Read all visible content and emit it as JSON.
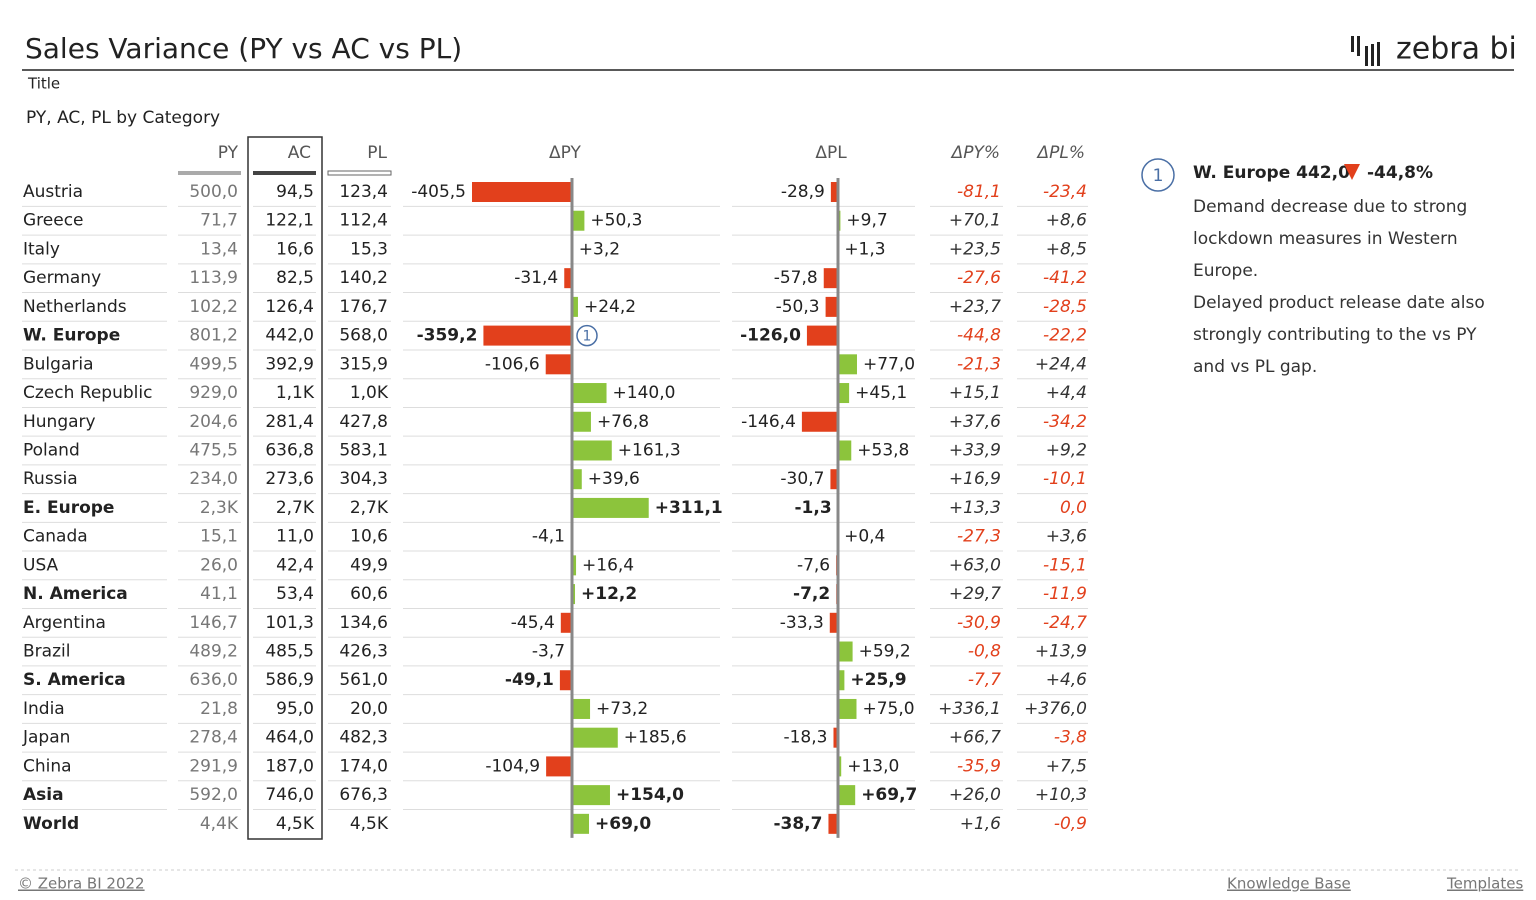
{
  "header": {
    "title": "Sales Variance (PY vs AC vs PL)",
    "logo": "zebra bi"
  },
  "visual": {
    "label": "Title",
    "subtitle": "PY, AC, PL by Category",
    "columns": [
      "PY",
      "AC",
      "PL",
      "ΔPY",
      "ΔPL",
      "ΔPY%",
      "ΔPL%"
    ],
    "rows": [
      {
        "name": "Austria",
        "py": "500,0",
        "ac": "94,5",
        "pl": "123,4",
        "dpy": {
          "value": -405.5,
          "label": "-405,5"
        },
        "dpl": {
          "value": -28.9,
          "label": "-28,9"
        },
        "dpy_pct": "-81,1",
        "dpl_pct": "-23,4",
        "bold": false
      },
      {
        "name": "Greece",
        "py": "71,7",
        "ac": "122,1",
        "pl": "112,4",
        "dpy": {
          "value": 50.3,
          "label": "+50,3"
        },
        "dpl": {
          "value": 9.7,
          "label": "+9,7"
        },
        "dpy_pct": "+70,1",
        "dpl_pct": "+8,6",
        "bold": false
      },
      {
        "name": "Italy",
        "py": "13,4",
        "ac": "16,6",
        "pl": "15,3",
        "dpy": {
          "value": 3.2,
          "label": "+3,2"
        },
        "dpl": {
          "value": 1.3,
          "label": "+1,3"
        },
        "dpy_pct": "+23,5",
        "dpl_pct": "+8,5",
        "bold": false
      },
      {
        "name": "Germany",
        "py": "113,9",
        "ac": "82,5",
        "pl": "140,2",
        "dpy": {
          "value": -31.4,
          "label": "-31,4"
        },
        "dpl": {
          "value": -57.8,
          "label": "-57,8"
        },
        "dpy_pct": "-27,6",
        "dpl_pct": "-41,2",
        "bold": false
      },
      {
        "name": "Netherlands",
        "py": "102,2",
        "ac": "126,4",
        "pl": "176,7",
        "dpy": {
          "value": 24.2,
          "label": "+24,2"
        },
        "dpl": {
          "value": -50.3,
          "label": "-50,3"
        },
        "dpy_pct": "+23,7",
        "dpl_pct": "-28,5",
        "bold": false
      },
      {
        "name": "W. Europe",
        "py": "801,2",
        "ac": "442,0",
        "pl": "568,0",
        "dpy": {
          "value": -359.2,
          "label": "-359,2"
        },
        "dpl": {
          "value": -126.0,
          "label": "-126,0"
        },
        "dpy_pct": "-44,8",
        "dpl_pct": "-22,2",
        "bold": true,
        "annotation": "1"
      },
      {
        "name": "Bulgaria",
        "py": "499,5",
        "ac": "392,9",
        "pl": "315,9",
        "dpy": {
          "value": -106.6,
          "label": "-106,6"
        },
        "dpl": {
          "value": 77.0,
          "label": "+77,0"
        },
        "dpy_pct": "-21,3",
        "dpl_pct": "+24,4",
        "bold": false
      },
      {
        "name": "Czech Republic",
        "py": "929,0",
        "ac": "1,1K",
        "pl": "1,0K",
        "dpy": {
          "value": 140.0,
          "label": "+140,0"
        },
        "dpl": {
          "value": 45.1,
          "label": "+45,1"
        },
        "dpy_pct": "+15,1",
        "dpl_pct": "+4,4",
        "bold": false
      },
      {
        "name": "Hungary",
        "py": "204,6",
        "ac": "281,4",
        "pl": "427,8",
        "dpy": {
          "value": 76.8,
          "label": "+76,8"
        },
        "dpl": {
          "value": -146.4,
          "label": "-146,4"
        },
        "dpy_pct": "+37,6",
        "dpl_pct": "-34,2",
        "bold": false
      },
      {
        "name": "Poland",
        "py": "475,5",
        "ac": "636,8",
        "pl": "583,1",
        "dpy": {
          "value": 161.3,
          "label": "+161,3"
        },
        "dpl": {
          "value": 53.8,
          "label": "+53,8"
        },
        "dpy_pct": "+33,9",
        "dpl_pct": "+9,2",
        "bold": false
      },
      {
        "name": "Russia",
        "py": "234,0",
        "ac": "273,6",
        "pl": "304,3",
        "dpy": {
          "value": 39.6,
          "label": "+39,6"
        },
        "dpl": {
          "value": -30.7,
          "label": "-30,7"
        },
        "dpy_pct": "+16,9",
        "dpl_pct": "-10,1",
        "bold": false
      },
      {
        "name": "E. Europe",
        "py": "2,3K",
        "ac": "2,7K",
        "pl": "2,7K",
        "dpy": {
          "value": 311.1,
          "label": "+311,1"
        },
        "dpl": {
          "value": -1.3,
          "label": "-1,3"
        },
        "dpy_pct": "+13,3",
        "dpl_pct": "0,0",
        "bold": true
      },
      {
        "name": "Canada",
        "py": "15,1",
        "ac": "11,0",
        "pl": "10,6",
        "dpy": {
          "value": -4.1,
          "label": "-4,1"
        },
        "dpl": {
          "value": 0.4,
          "label": "+0,4"
        },
        "dpy_pct": "-27,3",
        "dpl_pct": "+3,6",
        "bold": false
      },
      {
        "name": "USA",
        "py": "26,0",
        "ac": "42,4",
        "pl": "49,9",
        "dpy": {
          "value": 16.4,
          "label": "+16,4"
        },
        "dpl": {
          "value": -7.6,
          "label": "-7,6"
        },
        "dpy_pct": "+63,0",
        "dpl_pct": "-15,1",
        "bold": false
      },
      {
        "name": "N. America",
        "py": "41,1",
        "ac": "53,4",
        "pl": "60,6",
        "dpy": {
          "value": 12.2,
          "label": "+12,2"
        },
        "dpl": {
          "value": -7.2,
          "label": "-7,2"
        },
        "dpy_pct": "+29,7",
        "dpl_pct": "-11,9",
        "bold": true
      },
      {
        "name": "Argentina",
        "py": "146,7",
        "ac": "101,3",
        "pl": "134,6",
        "dpy": {
          "value": -45.4,
          "label": "-45,4"
        },
        "dpl": {
          "value": -33.3,
          "label": "-33,3"
        },
        "dpy_pct": "-30,9",
        "dpl_pct": "-24,7",
        "bold": false
      },
      {
        "name": "Brazil",
        "py": "489,2",
        "ac": "485,5",
        "pl": "426,3",
        "dpy": {
          "value": -3.7,
          "label": "-3,7"
        },
        "dpl": {
          "value": 59.2,
          "label": "+59,2"
        },
        "dpy_pct": "-0,8",
        "dpl_pct": "+13,9",
        "bold": false
      },
      {
        "name": "S. America",
        "py": "636,0",
        "ac": "586,9",
        "pl": "561,0",
        "dpy": {
          "value": -49.1,
          "label": "-49,1"
        },
        "dpl": {
          "value": 25.9,
          "label": "+25,9"
        },
        "dpy_pct": "-7,7",
        "dpl_pct": "+4,6",
        "bold": true
      },
      {
        "name": "India",
        "py": "21,8",
        "ac": "95,0",
        "pl": "20,0",
        "dpy": {
          "value": 73.2,
          "label": "+73,2"
        },
        "dpl": {
          "value": 75.0,
          "label": "+75,0"
        },
        "dpy_pct": "+336,1",
        "dpl_pct": "+376,0",
        "bold": false
      },
      {
        "name": "Japan",
        "py": "278,4",
        "ac": "464,0",
        "pl": "482,3",
        "dpy": {
          "value": 185.6,
          "label": "+185,6"
        },
        "dpl": {
          "value": -18.3,
          "label": "-18,3"
        },
        "dpy_pct": "+66,7",
        "dpl_pct": "-3,8",
        "bold": false
      },
      {
        "name": "China",
        "py": "291,9",
        "ac": "187,0",
        "pl": "174,0",
        "dpy": {
          "value": -104.9,
          "label": "-104,9"
        },
        "dpl": {
          "value": 13.0,
          "label": "+13,0"
        },
        "dpy_pct": "-35,9",
        "dpl_pct": "+7,5",
        "bold": false
      },
      {
        "name": "Asia",
        "py": "592,0",
        "ac": "746,0",
        "pl": "676,3",
        "dpy": {
          "value": 154.0,
          "label": "+154,0"
        },
        "dpl": {
          "value": 69.7,
          "label": "+69,7"
        },
        "dpy_pct": "+26,0",
        "dpl_pct": "+10,3",
        "bold": true
      },
      {
        "name": "World",
        "py": "4,4K",
        "ac": "4,5K",
        "pl": "4,5K",
        "dpy": {
          "value": 69.0,
          "label": "+69,0"
        },
        "dpl": {
          "value": -38.7,
          "label": "-38,7"
        },
        "dpy_pct": "+1,6",
        "dpl_pct": "-0,9",
        "bold": true
      }
    ],
    "colors": {
      "positive": "#8cc43c",
      "negative": "#e2401c"
    }
  },
  "comment": {
    "marker": "1",
    "heading": "W. Europe 442,0",
    "delta": "-44,8%",
    "lines": [
      "Demand decrease due to strong",
      "lockdown measures in Western",
      "Europe.",
      "Delayed product release date also",
      "strongly contributing to the vs PY",
      "and vs PL gap."
    ]
  },
  "footer": {
    "copyright": "© Zebra BI 2022",
    "links": [
      "Knowledge Base",
      "Templates"
    ]
  }
}
